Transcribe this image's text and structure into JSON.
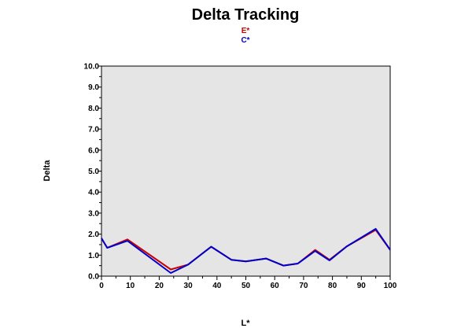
{
  "chart_data": {
    "type": "line",
    "title": "Delta Tracking",
    "xlabel": "L*",
    "ylabel": "Delta",
    "xlim": [
      0,
      100
    ],
    "ylim": [
      0,
      10
    ],
    "x_ticks": [
      "0",
      "10",
      "20",
      "30",
      "40",
      "50",
      "60",
      "70",
      "80",
      "90",
      "100"
    ],
    "y_ticks": [
      "0.0",
      "1.0",
      "2.0",
      "3.0",
      "4.0",
      "5.0",
      "6.0",
      "7.0",
      "8.0",
      "9.0",
      "10.0"
    ],
    "grid": false,
    "legend_position": "top-center",
    "plot_background": "#e5e5e5",
    "series": [
      {
        "name": "E*",
        "color": "#cc0000",
        "points": [
          [
            0,
            1.8
          ],
          [
            2,
            1.35
          ],
          [
            9,
            1.75
          ],
          [
            24,
            0.32
          ],
          [
            30,
            0.55
          ],
          [
            38,
            1.4
          ],
          [
            45,
            0.78
          ],
          [
            50,
            0.7
          ],
          [
            57,
            0.84
          ],
          [
            63,
            0.5
          ],
          [
            68,
            0.6
          ],
          [
            74,
            1.25
          ],
          [
            79,
            0.78
          ],
          [
            85,
            1.42
          ],
          [
            95,
            2.2
          ],
          [
            100,
            1.25
          ]
        ]
      },
      {
        "name": "C*",
        "color": "#0000cc",
        "points": [
          [
            0,
            1.8
          ],
          [
            2,
            1.35
          ],
          [
            9,
            1.68
          ],
          [
            24,
            0.15
          ],
          [
            30,
            0.55
          ],
          [
            38,
            1.4
          ],
          [
            45,
            0.78
          ],
          [
            50,
            0.7
          ],
          [
            57,
            0.84
          ],
          [
            63,
            0.5
          ],
          [
            68,
            0.6
          ],
          [
            74,
            1.2
          ],
          [
            79,
            0.75
          ],
          [
            85,
            1.42
          ],
          [
            95,
            2.25
          ],
          [
            100,
            1.25
          ]
        ]
      }
    ]
  }
}
